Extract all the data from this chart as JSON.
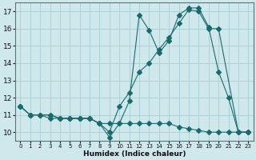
{
  "xlabel": "Humidex (Indice chaleur)",
  "background_color": "#cfe8ec",
  "grid_color": "#b0d0d8",
  "line_color": "#1a6b6b",
  "xlim": [
    -0.5,
    23.5
  ],
  "ylim": [
    9.5,
    17.5
  ],
  "xticks": [
    0,
    1,
    2,
    3,
    4,
    5,
    6,
    7,
    8,
    9,
    10,
    11,
    12,
    13,
    14,
    15,
    16,
    17,
    18,
    19,
    20,
    21,
    22,
    23
  ],
  "yticks": [
    10,
    11,
    12,
    13,
    14,
    15,
    16,
    17
  ],
  "series1_x": [
    0,
    1,
    2,
    3,
    4,
    5,
    6,
    7,
    8,
    9,
    10,
    11,
    12,
    13,
    14,
    15,
    16,
    17,
    18,
    19,
    20,
    21,
    22,
    23
  ],
  "series1_y": [
    11.5,
    11.0,
    11.0,
    10.8,
    10.8,
    10.8,
    10.8,
    10.8,
    10.5,
    10.5,
    10.5,
    10.5,
    10.5,
    10.5,
    10.5,
    10.5,
    10.3,
    10.2,
    10.1,
    10.0,
    10.0,
    10.0,
    10.0,
    10.0
  ],
  "series2_x": [
    0,
    1,
    2,
    3,
    4,
    5,
    6,
    7,
    8,
    9,
    10,
    11,
    12,
    13,
    14,
    15,
    16,
    17,
    18,
    19,
    20,
    21,
    22,
    23
  ],
  "series2_y": [
    11.5,
    11.0,
    11.0,
    11.0,
    10.8,
    10.8,
    10.8,
    10.8,
    10.5,
    9.7,
    10.5,
    11.8,
    16.8,
    15.9,
    14.6,
    15.3,
    16.8,
    17.2,
    17.2,
    16.1,
    13.5,
    12.0,
    10.0,
    10.0
  ],
  "series3_x": [
    0,
    1,
    2,
    3,
    4,
    5,
    6,
    7,
    8,
    9,
    10,
    11,
    12,
    13,
    14,
    15,
    16,
    17,
    18,
    19,
    20,
    22,
    23
  ],
  "series3_y": [
    11.5,
    11.0,
    11.0,
    11.0,
    10.8,
    10.8,
    10.8,
    10.8,
    10.5,
    10.0,
    11.5,
    12.3,
    13.5,
    14.0,
    14.8,
    15.5,
    16.3,
    17.1,
    17.0,
    16.0,
    16.0,
    10.0,
    10.0
  ]
}
